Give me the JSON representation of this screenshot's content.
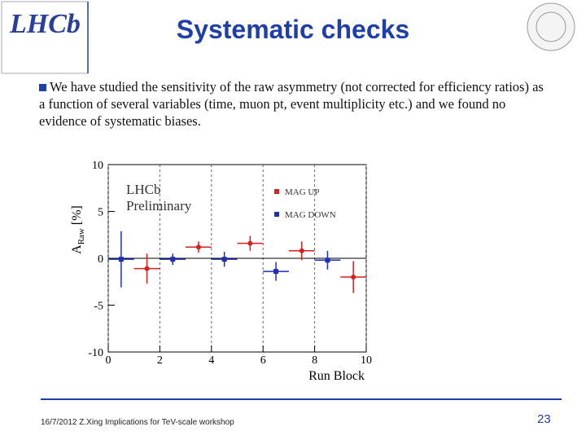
{
  "header": {
    "logo_text": "LHCb",
    "title": "Systematic checks"
  },
  "body": {
    "text": "We have studied the sensitivity of the raw asymmetry (not corrected for efficiency ratios) as a function of several variables (time, muon pt, event multiplicity etc.) and we found no evidence of systematic biases."
  },
  "chart_data": {
    "type": "errorbar",
    "y_label": {
      "main": "A",
      "sub": "Raw",
      "unit": "[%]"
    },
    "x_label": "Run Block",
    "annotations": [
      "LHCb",
      "Preliminary"
    ],
    "xlim": [
      0,
      10
    ],
    "xticks": [
      0,
      2,
      4,
      6,
      8,
      10
    ],
    "ylim": [
      -10,
      10
    ],
    "yticks": [
      -10,
      -5,
      0,
      5,
      10
    ],
    "grid": true,
    "legend": "top-right",
    "series": [
      {
        "name": "MAG UP",
        "color": "#d42020",
        "x": [
          1.5,
          3.5,
          5.5,
          7.5,
          9.5
        ],
        "x_errors": [
          0.5,
          0.5,
          0.5,
          0.5,
          0.5
        ],
        "values": [
          -1.1,
          1.2,
          1.6,
          0.8,
          -2.0
        ],
        "errors": [
          1.6,
          0.6,
          0.8,
          1.0,
          1.7
        ]
      },
      {
        "name": "MAG DOWN",
        "color": "#1f2fb0",
        "x": [
          0.5,
          2.5,
          4.5,
          6.5,
          8.5
        ],
        "x_errors": [
          0.5,
          0.5,
          0.5,
          0.5,
          0.5
        ],
        "values": [
          -0.1,
          -0.1,
          -0.1,
          -1.4,
          -0.2
        ],
        "errors": [
          3.0,
          0.6,
          0.8,
          1.0,
          1.0
        ]
      }
    ]
  },
  "footer": {
    "note": "16/7/2012 Z.Xing Implications for TeV-scale workshop",
    "page": "23"
  }
}
